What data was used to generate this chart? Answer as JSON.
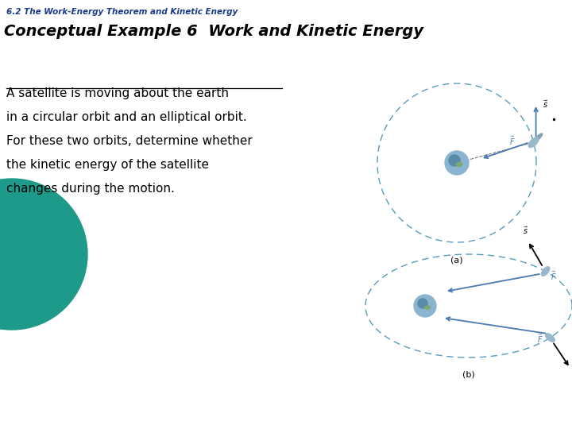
{
  "subtitle": "6.2 The Work-Energy Theorem and Kinetic Energy",
  "subtitle_color": "#1a3a8a",
  "subtitle_fontsize": 7.5,
  "title": "Conceptual Example 6  Work and Kinetic Energy",
  "title_fontsize": 14,
  "body_lines": [
    "A satellite is moving about the earth",
    "in a circular orbit and an elliptical orbit.",
    "For these two orbits, determine whether",
    "the kinetic energy of the satellite",
    "changes during the motion."
  ],
  "body_fontsize": 11,
  "bg_color": "#ffffff",
  "teal_color": "#1e9a8a",
  "orbit_color": "#5a9abf",
  "arrow_color": "#4a7ab0",
  "label_a": "(a)",
  "label_b": "(b)"
}
